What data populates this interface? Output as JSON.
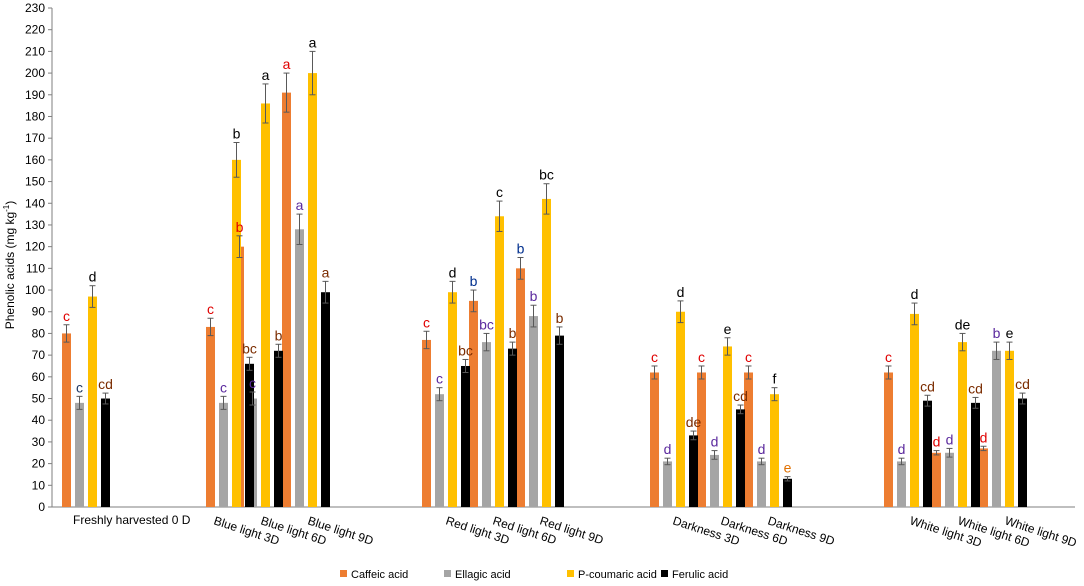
{
  "chart_data": {
    "type": "bar",
    "title": "",
    "xlabel": "",
    "ylabel": "Phenolic acids (mg kg",
    "ylabel_sup": "-1",
    "ylabel_end": ")",
    "ylim": [
      0,
      230
    ],
    "ytick_step": 10,
    "gridlines": false,
    "legend_position": "bottom",
    "categories": [
      "Freshly harvested  0 D",
      "Blue light 3D",
      "Blue light 6D",
      "Blue light 9D",
      "Red light 3D",
      "Red light 6D",
      "Red light 9D",
      "Darkness 3D",
      "Darkness 6D",
      "Darkness 9D",
      "White light 3D",
      "White light 6D",
      "White light 9D"
    ],
    "series": [
      {
        "name": "Caffeic acid",
        "color": "#ED7D31",
        "values": [
          80,
          83,
          120,
          191,
          77,
          95,
          110,
          62,
          62,
          62,
          62,
          25,
          27
        ],
        "errors": [
          4,
          4,
          5,
          9,
          4,
          5,
          5,
          3,
          3,
          3,
          3,
          1,
          1
        ],
        "letters": [
          "c",
          "c",
          "b",
          "a",
          "c",
          "b",
          "b",
          "c",
          "c",
          "c",
          "c",
          "d",
          "d"
        ],
        "letter_colors": [
          "#e00000",
          "#e00000",
          "#e00000",
          "#e00000",
          "#e00000",
          "#002f8e",
          "#002f8e",
          "#e00000",
          "#e00000",
          "#e00000",
          "#e00000",
          "#e00000",
          "#e00000"
        ]
      },
      {
        "name": "Ellagic acid",
        "color": "#A5A5A5",
        "values": [
          48,
          48,
          50,
          128,
          52,
          76,
          88,
          21,
          24,
          21,
          21,
          25,
          72
        ],
        "errors": [
          3,
          3,
          3,
          7,
          3,
          4,
          5,
          1.5,
          2,
          1.5,
          1.5,
          2,
          4
        ],
        "letters": [
          "c",
          "c",
          "c",
          "a",
          "c",
          "bc",
          "b",
          "d",
          "d",
          "d",
          "d",
          "d",
          "b"
        ],
        "letter_colors": [
          "#1f3864",
          "#5b2a9e",
          "#5b2a9e",
          "#5b2a9e",
          "#5b2a9e",
          "#5b2a9e",
          "#5b2a9e",
          "#5b2a9e",
          "#5b2a9e",
          "#5b2a9e",
          "#5b2a9e",
          "#5b2a9e",
          "#5b2a9e"
        ]
      },
      {
        "name": "P-coumaric acid",
        "color": "#FFC000",
        "values": [
          97,
          160,
          186,
          200,
          99,
          134,
          142,
          90,
          74,
          52,
          89,
          76,
          72
        ],
        "errors": [
          5,
          8,
          9,
          10,
          5,
          7,
          7,
          5,
          4,
          3,
          5,
          4,
          4
        ],
        "letters": [
          "d",
          "b",
          "a",
          "a",
          "d",
          "c",
          "bc",
          "d",
          "e",
          "f",
          "d",
          "de",
          "e"
        ],
        "letter_colors": [
          "#000000",
          "#000000",
          "#000000",
          "#000000",
          "#000000",
          "#000000",
          "#000000",
          "#000000",
          "#000000",
          "#000000",
          "#000000",
          "#000000",
          "#000000"
        ]
      },
      {
        "name": "Ferulic acid",
        "color": "#000000",
        "values": [
          50,
          66,
          72,
          99,
          65,
          73,
          79,
          33,
          45,
          13,
          49,
          48,
          50
        ],
        "errors": [
          2.5,
          3,
          3,
          5,
          3,
          3,
          4,
          2,
          2,
          1,
          2.5,
          2.5,
          2.5
        ],
        "letters": [
          "cd",
          "bc",
          "b",
          "a",
          "bc",
          "b",
          "b",
          "de",
          "cd",
          "e",
          "cd",
          "cd",
          "cd"
        ],
        "letter_colors": [
          "#7b2c00",
          "#7b2c00",
          "#7b2c00",
          "#7b2c00",
          "#7b2c00",
          "#7b2c00",
          "#7b2c00",
          "#7b2c00",
          "#7b2c00",
          "#e07000",
          "#7b2c00",
          "#7b2c00",
          "#7b2c00"
        ]
      }
    ]
  }
}
